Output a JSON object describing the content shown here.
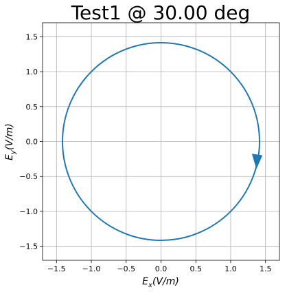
{
  "chart_data": {
    "type": "line",
    "title": "Test1 @ 30.00 deg",
    "xlabel": {
      "main": "E",
      "sub": "x",
      "unit": "(V/m)"
    },
    "ylabel": {
      "main": "E",
      "sub": "y",
      "unit": "(V/m)"
    },
    "xlim": [
      -1.7,
      1.7
    ],
    "ylim": [
      -1.7,
      1.7
    ],
    "xticks": [
      -1.5,
      -1.0,
      -0.5,
      0.0,
      0.5,
      1.0,
      1.5
    ],
    "yticks": [
      -1.5,
      -1.0,
      -0.5,
      0.0,
      0.5,
      1.0,
      1.5
    ],
    "xtick_labels": [
      "−1.5",
      "−1.0",
      "−0.5",
      "0.0",
      "0.5",
      "1.0",
      "1.5"
    ],
    "ytick_labels": [
      "−1.5",
      "−1.0",
      "−0.5",
      "0.0",
      "0.5",
      "1.0",
      "1.5"
    ],
    "grid": true,
    "series": [
      {
        "shape": "circle",
        "center": [
          0.0,
          0.0
        ],
        "radius": 1.414,
        "color": "#1f77b4",
        "arrow": {
          "at": [
            1.38,
            -0.28
          ],
          "direction": "down"
        }
      }
    ]
  }
}
